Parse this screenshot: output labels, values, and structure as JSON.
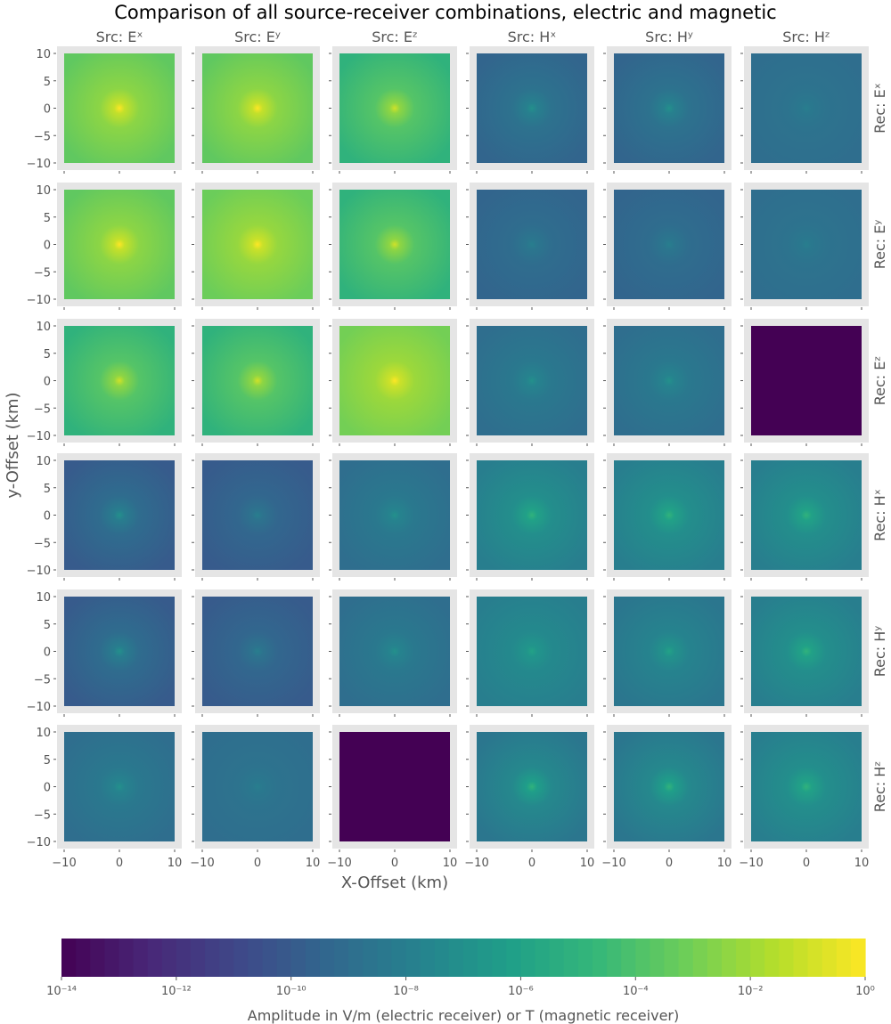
{
  "chart_data": {
    "type": "heatmap",
    "title": "Comparison of all source-receiver combinations, electric and magnetic",
    "xlabel": "X-Offset (km)",
    "ylabel": "y-Offset (km)",
    "columns": [
      "Src: Eˣ",
      "Src: Eʸ",
      "Src: Eᶻ",
      "Src: Hˣ",
      "Src: Hʸ",
      "Src: Hᶻ"
    ],
    "rows": [
      "Rec: Eˣ",
      "Rec: Eʸ",
      "Rec: Eᶻ",
      "Rec: Hˣ",
      "Rec: Hʸ",
      "Rec: Hᶻ"
    ],
    "xlim": [
      -10,
      10
    ],
    "ylim": [
      -10,
      10
    ],
    "xticks": [
      "−10",
      "0",
      "10"
    ],
    "yticks": [
      "10",
      "5",
      "0",
      "−5",
      "−10"
    ],
    "colormap": "viridis",
    "log10_amplitude_center_edge": [
      [
        [
          0,
          -3.5
        ],
        [
          0,
          -3.5
        ],
        [
          -1,
          -5
        ],
        [
          -7,
          -9.5
        ],
        [
          -7,
          -9.5
        ],
        [
          -8,
          -9
        ]
      ],
      [
        [
          0,
          -3.5
        ],
        [
          0,
          -3.2
        ],
        [
          -1,
          -5
        ],
        [
          -8,
          -9.5
        ],
        [
          -8,
          -9.5
        ],
        [
          -8,
          -9
        ]
      ],
      [
        [
          -1,
          -5
        ],
        [
          -1,
          -5
        ],
        [
          0,
          -3
        ],
        [
          -7,
          -9
        ],
        [
          -7,
          -9
        ],
        [
          -14,
          -14
        ]
      ],
      [
        [
          -7,
          -10
        ],
        [
          -8,
          -10
        ],
        [
          -7,
          -9
        ],
        [
          -5,
          -8
        ],
        [
          -5,
          -8
        ],
        [
          -5,
          -8
        ]
      ],
      [
        [
          -7,
          -10
        ],
        [
          -8,
          -10
        ],
        [
          -7,
          -9
        ],
        [
          -6,
          -8
        ],
        [
          -6,
          -8.5
        ],
        [
          -5,
          -8
        ]
      ],
      [
        [
          -7,
          -9
        ],
        [
          -8,
          -9
        ],
        [
          -14,
          -14
        ],
        [
          -5,
          -8.5
        ],
        [
          -5,
          -8.5
        ],
        [
          -5,
          -8
        ]
      ]
    ],
    "colorbar": {
      "label": "Amplitude in V/m (electric receiver) or T (magnetic receiver)",
      "scale": "log",
      "range": [
        1e-14,
        1
      ],
      "ticks": [
        "10⁻¹⁴",
        "10⁻¹²",
        "10⁻¹⁰",
        "10⁻⁸",
        "10⁻⁶",
        "10⁻⁴",
        "10⁻²",
        "10⁰"
      ]
    }
  }
}
